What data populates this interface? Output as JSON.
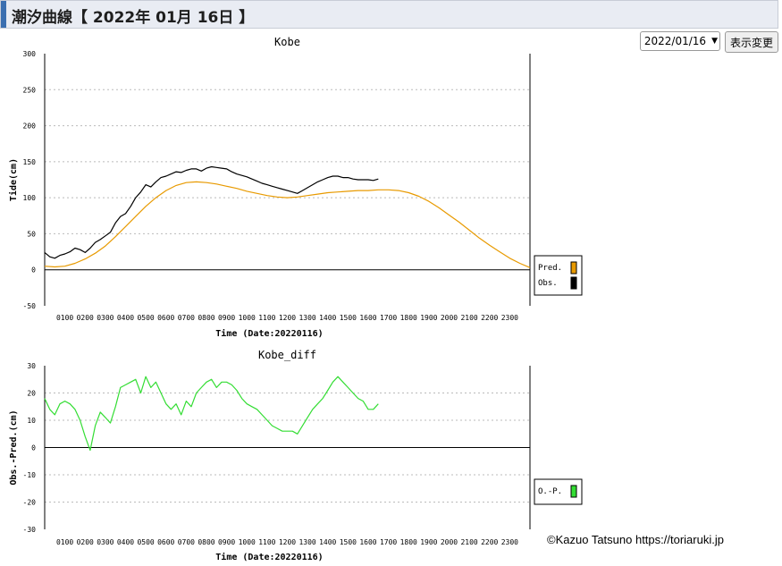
{
  "header": {
    "title": "潮汐曲線【 2022年 01月 16日 】"
  },
  "controls": {
    "date_value": "2022/01/16",
    "show_button": "表示変更"
  },
  "credit": "©Kazuo Tatsuno https://toriaruki.jp",
  "chart_data": [
    {
      "type": "line",
      "title": "Kobe",
      "xlabel": "Time (Date:20220116)",
      "ylabel": "Tide(cm)",
      "xlim": [
        0,
        24
      ],
      "ylim": [
        -50,
        300
      ],
      "yticks": [
        300,
        250,
        200,
        150,
        100,
        50,
        0,
        -50
      ],
      "xticks": [
        "0100",
        "0200",
        "0300",
        "0400",
        "0500",
        "0600",
        "0700",
        "0800",
        "0900",
        "1000",
        "1100",
        "1200",
        "1300",
        "1400",
        "1500",
        "1600",
        "1700",
        "1800",
        "1900",
        "2000",
        "2100",
        "2200",
        "2300"
      ],
      "grid": true,
      "legend": "right",
      "series": [
        {
          "name": "Pred.",
          "color": "#e89a00",
          "x": [
            0,
            0.5,
            1,
            1.5,
            2,
            2.5,
            3,
            3.5,
            4,
            4.5,
            5,
            5.5,
            6,
            6.5,
            7,
            7.5,
            8,
            8.5,
            9,
            9.5,
            10,
            10.5,
            11,
            11.5,
            12,
            12.5,
            13,
            13.5,
            14,
            14.5,
            15,
            15.5,
            16,
            16.5,
            17,
            17.5,
            18,
            18.5,
            19,
            19.5,
            20,
            20.5,
            21,
            21.5,
            22,
            22.5,
            23,
            23.5,
            24
          ],
          "values": [
            5,
            4,
            5,
            9,
            15,
            23,
            33,
            46,
            60,
            74,
            88,
            100,
            110,
            117,
            121,
            122,
            121,
            119,
            116,
            113,
            109,
            106,
            103,
            101,
            100,
            101,
            103,
            105,
            107,
            108,
            109,
            110,
            110,
            111,
            111,
            110,
            107,
            102,
            95,
            86,
            76,
            66,
            55,
            44,
            34,
            25,
            16,
            9,
            3
          ]
        },
        {
          "name": "Obs.",
          "color": "#000000",
          "x": [
            0,
            0.25,
            0.5,
            0.75,
            1,
            1.25,
            1.5,
            1.75,
            2,
            2.25,
            2.5,
            2.75,
            3,
            3.25,
            3.5,
            3.75,
            4,
            4.25,
            4.5,
            4.75,
            5,
            5.25,
            5.5,
            5.75,
            6,
            6.25,
            6.5,
            6.75,
            7,
            7.25,
            7.5,
            7.75,
            8,
            8.25,
            8.5,
            8.75,
            9,
            9.25,
            9.5,
            9.75,
            10,
            10.25,
            10.5,
            10.75,
            11,
            11.25,
            11.5,
            11.75,
            12,
            12.25,
            12.5,
            12.75,
            13,
            13.25,
            13.5,
            13.75,
            14,
            14.25,
            14.5,
            14.75,
            15,
            15.25,
            15.5,
            15.75,
            16,
            16.25,
            16.5
          ],
          "values": [
            24,
            18,
            16,
            20,
            22,
            25,
            30,
            28,
            24,
            30,
            38,
            42,
            47,
            52,
            65,
            74,
            78,
            88,
            100,
            108,
            118,
            115,
            122,
            128,
            130,
            133,
            136,
            135,
            138,
            140,
            140,
            137,
            141,
            143,
            142,
            141,
            140,
            136,
            133,
            131,
            129,
            126,
            123,
            120,
            118,
            116,
            114,
            112,
            110,
            108,
            106,
            110,
            114,
            118,
            122,
            125,
            128,
            130,
            130,
            128,
            128,
            126,
            125,
            125,
            125,
            124,
            126
          ]
        }
      ]
    },
    {
      "type": "line",
      "title": "Kobe_diff",
      "xlabel": "Time (Date:20220116)",
      "ylabel": "Obs.-Pred.(cm)",
      "xlim": [
        0,
        24
      ],
      "ylim": [
        -30,
        30
      ],
      "yticks": [
        30,
        20,
        10,
        0,
        -10,
        -20,
        -30
      ],
      "xticks": [
        "0100",
        "0200",
        "0300",
        "0400",
        "0500",
        "0600",
        "0700",
        "0800",
        "0900",
        "1000",
        "1100",
        "1200",
        "1300",
        "1400",
        "1500",
        "1600",
        "1700",
        "1800",
        "1900",
        "2000",
        "2100",
        "2200",
        "2300"
      ],
      "grid": true,
      "legend": "right",
      "series": [
        {
          "name": "O.-P.",
          "color": "#33dd33",
          "x": [
            0,
            0.25,
            0.5,
            0.75,
            1,
            1.25,
            1.5,
            1.75,
            2,
            2.25,
            2.5,
            2.75,
            3,
            3.25,
            3.5,
            3.75,
            4,
            4.25,
            4.5,
            4.75,
            5,
            5.25,
            5.5,
            5.75,
            6,
            6.25,
            6.5,
            6.75,
            7,
            7.25,
            7.5,
            7.75,
            8,
            8.25,
            8.5,
            8.75,
            9,
            9.25,
            9.5,
            9.75,
            10,
            10.25,
            10.5,
            10.75,
            11,
            11.25,
            11.5,
            11.75,
            12,
            12.25,
            12.5,
            12.75,
            13,
            13.25,
            13.5,
            13.75,
            14,
            14.25,
            14.5,
            14.75,
            15,
            15.25,
            15.5,
            15.75,
            16,
            16.25,
            16.5
          ],
          "values": [
            18,
            14,
            12,
            16,
            17,
            16,
            14,
            10,
            4,
            -1,
            8,
            13,
            11,
            9,
            15,
            22,
            23,
            24,
            25,
            20,
            26,
            22,
            24,
            20,
            16,
            14,
            16,
            12,
            17,
            15,
            20,
            22,
            24,
            25,
            22,
            24,
            24,
            23,
            21,
            18,
            16,
            15,
            14,
            12,
            10,
            8,
            7,
            6,
            6,
            6,
            5,
            8,
            11,
            14,
            16,
            18,
            21,
            24,
            26,
            24,
            22,
            20,
            18,
            17,
            14,
            14,
            16
          ]
        }
      ]
    }
  ]
}
